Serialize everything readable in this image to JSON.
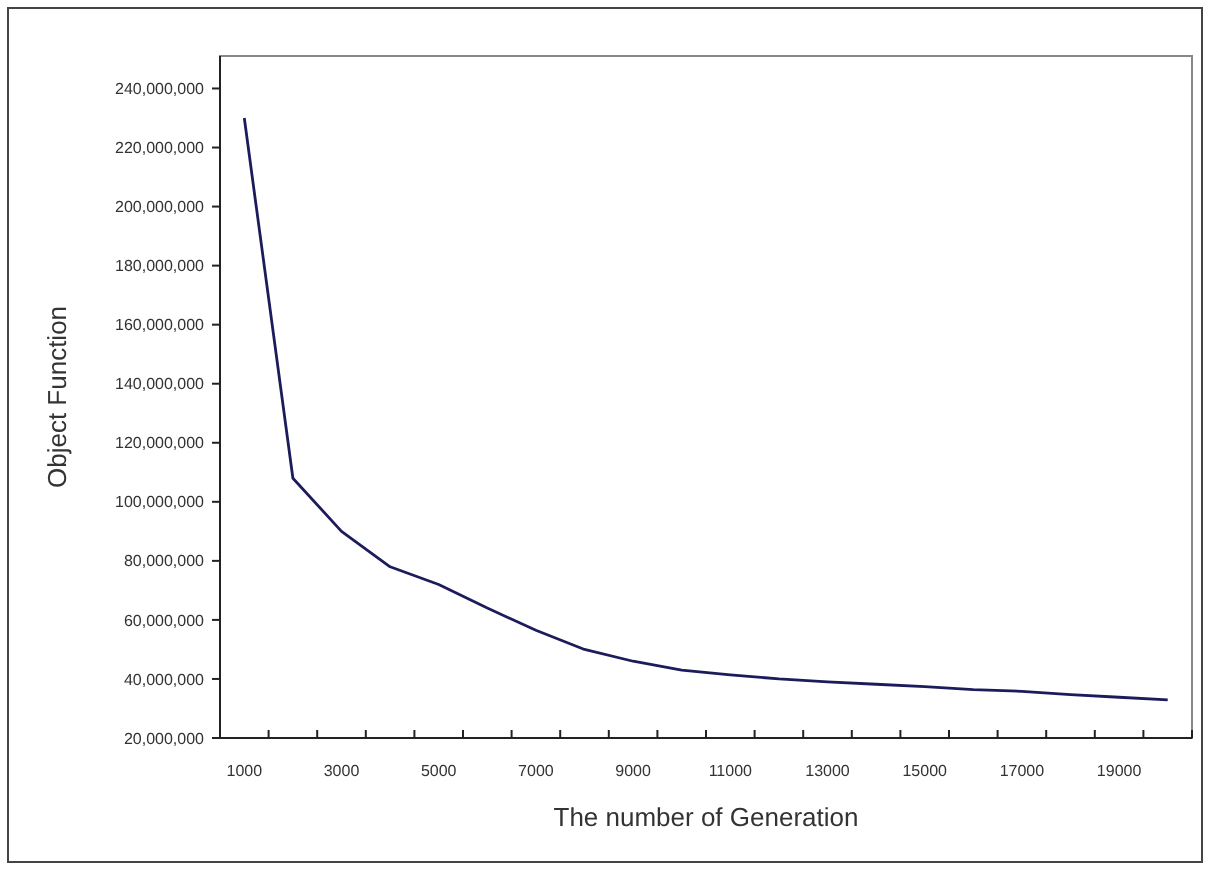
{
  "chart_data": {
    "type": "line",
    "xlabel": "The number of Generation",
    "ylabel": "Object Function",
    "categories": [
      "1000",
      null,
      "3000",
      null,
      "5000",
      null,
      "7000",
      null,
      "9000",
      null,
      "11000",
      null,
      "13000",
      null,
      "15000",
      null,
      "17000",
      null,
      "19000",
      null
    ],
    "series": [
      {
        "color": "#1c1c5c",
        "values": [
          230000000,
          108000000,
          90000000,
          78000000,
          72000000,
          64000000,
          56500000,
          50000000,
          46000000,
          43000000,
          41400000,
          40000000,
          39000000,
          38200000,
          37400000,
          36400000,
          35800000,
          34700000,
          33800000,
          32900000
        ]
      }
    ],
    "ylim": [
      20000000,
      251000000
    ],
    "yticks": [
      {
        "value": 20000000,
        "label": "20,000,000"
      },
      {
        "value": 40000000,
        "label": "40,000,000"
      },
      {
        "value": 60000000,
        "label": "60,000,000"
      },
      {
        "value": 80000000,
        "label": "80,000,000"
      },
      {
        "value": 100000000,
        "label": "100,000,000"
      },
      {
        "value": 120000000,
        "label": "120,000,000"
      },
      {
        "value": 140000000,
        "label": "140,000,000"
      },
      {
        "value": 160000000,
        "label": "160,000,000"
      },
      {
        "value": 180000000,
        "label": "180,000,000"
      },
      {
        "value": 200000000,
        "label": "200,000,000"
      },
      {
        "value": 220000000,
        "label": "220,000,000"
      },
      {
        "value": 240000000,
        "label": "240,000,000"
      }
    ],
    "grid": false,
    "marker": "none",
    "line_style": "solid"
  }
}
